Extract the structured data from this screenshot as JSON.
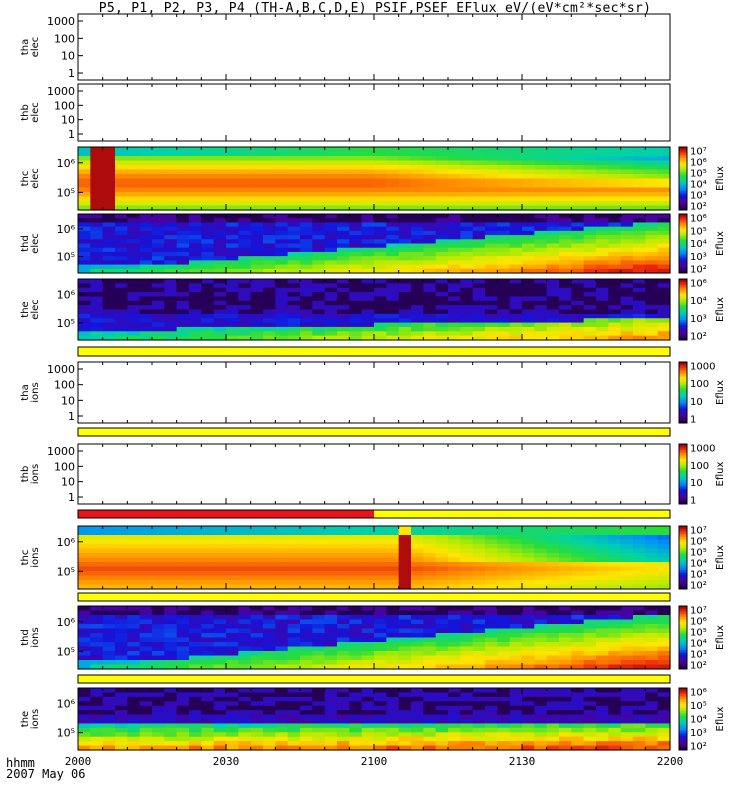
{
  "title": "P5, P1, P2, P3, P4 (TH-A,B,C,D,E) PSIF,PSEF EFlux eV/(eV*cm²*sec*sr)",
  "footer": {
    "hhmm": "hhmm",
    "date": "2007 May 06"
  },
  "time_axis": {
    "ticks": [
      "2000",
      "2030",
      "2100",
      "2130",
      "2200"
    ],
    "range_hhmm": [
      "2000",
      "2200"
    ]
  },
  "colorbar_title": "Eflux",
  "chart_data": [
    {
      "type": "heatmap",
      "panel": "tha elec",
      "ylabel": [
        "tha",
        "elec"
      ],
      "yscale": "log",
      "ylim": [
        0.5,
        1500
      ],
      "yticks": [
        "1000",
        "100",
        "10",
        "1"
      ],
      "data_shown": false
    },
    {
      "type": "heatmap",
      "panel": "thb elec",
      "ylabel": [
        "thb",
        "elec"
      ],
      "yscale": "log",
      "ylim": [
        0.5,
        1500
      ],
      "yticks": [
        "1000",
        "100",
        "10",
        "1"
      ],
      "data_shown": false
    },
    {
      "type": "heatmap",
      "panel": "thc elec",
      "ylabel": [
        "thc",
        "elec"
      ],
      "yscale": "log",
      "yticks": [
        "10⁶",
        "10⁵"
      ],
      "colorbar": {
        "label": "Eflux",
        "ticks": [
          "10⁷",
          "10⁶",
          "10⁵",
          "10⁴",
          "10³",
          "10²"
        ]
      },
      "pattern": "hot_flux_enhancement_near_2003"
    },
    {
      "type": "heatmap",
      "panel": "thd elec",
      "ylabel": [
        "thd",
        "elec"
      ],
      "yscale": "log",
      "yticks": [
        "10⁶",
        "10⁵"
      ],
      "colorbar": {
        "label": "Eflux",
        "ticks": [
          "10⁶",
          "10⁵",
          "10⁴",
          "10³",
          "10²"
        ]
      },
      "pattern": "rising_flux_toward_2200"
    },
    {
      "type": "heatmap",
      "panel": "the elec",
      "ylabel": [
        "the",
        "elec"
      ],
      "yscale": "log",
      "yticks": [
        "10⁶",
        "10⁵"
      ],
      "colorbar": {
        "label": "Eflux",
        "ticks": [
          "10⁶",
          "10⁴",
          "10³",
          "10²"
        ]
      },
      "pattern": "low_energy_flux_rising_late"
    },
    {
      "type": "heatmap",
      "panel": "tha ions",
      "ylabel": [
        "tha",
        "ions"
      ],
      "yscale": "log",
      "ylim": [
        0.5,
        1500
      ],
      "yticks": [
        "1000",
        "100",
        "10",
        "1"
      ],
      "colorbar": {
        "label": "Eflux",
        "ticks": [
          "1000",
          "100",
          "10",
          "1"
        ]
      },
      "data_shown": false
    },
    {
      "type": "heatmap",
      "panel": "thb ions",
      "ylabel": [
        "thb",
        "ions"
      ],
      "yscale": "log",
      "ylim": [
        0.5,
        1500
      ],
      "yticks": [
        "1000",
        "100",
        "10",
        "1"
      ],
      "colorbar": {
        "label": "Eflux",
        "ticks": [
          "1000",
          "100",
          "10",
          "1"
        ]
      },
      "data_shown": false
    },
    {
      "type": "heatmap",
      "panel": "thc ions",
      "ylabel": [
        "thc",
        "ions"
      ],
      "yscale": "log",
      "yticks": [
        "10⁶",
        "10⁵"
      ],
      "colorbar": {
        "label": "Eflux",
        "ticks": [
          "10⁷",
          "10⁶",
          "10⁵",
          "10⁴",
          "10³",
          "10²"
        ]
      },
      "pattern": "hot_plasma_with_spike_near_2110"
    },
    {
      "type": "heatmap",
      "panel": "thd ions",
      "ylabel": [
        "thd",
        "ions"
      ],
      "yscale": "log",
      "yticks": [
        "10⁶",
        "10⁵"
      ],
      "colorbar": {
        "label": "Eflux",
        "ticks": [
          "10⁷",
          "10⁶",
          "10⁵",
          "10⁴",
          "10³",
          "10²"
        ]
      },
      "pattern": "rising_flux_toward_2200"
    },
    {
      "type": "heatmap",
      "panel": "the ions",
      "ylabel": [
        "the",
        "ions"
      ],
      "yscale": "log",
      "yticks": [
        "10⁶",
        "10⁵"
      ],
      "colorbar": {
        "label": "Eflux",
        "ticks": [
          "10⁶",
          "10⁵",
          "10⁴",
          "10³",
          "10²"
        ]
      },
      "pattern": "low_energy_flux_band"
    }
  ],
  "mode_bars": [
    {
      "after_panel": "the elec",
      "segments": [
        {
          "from": "2000",
          "to": "2200",
          "color": "#ffff00"
        }
      ]
    },
    {
      "after_panel": "tha ions",
      "segments": [
        {
          "from": "2000",
          "to": "2200",
          "color": "#ffff00"
        }
      ]
    },
    {
      "after_panel": "thb ions",
      "segments": [
        {
          "from": "2000",
          "to": "2100",
          "color": "#e8141c"
        },
        {
          "from": "2100",
          "to": "2200",
          "color": "#ffff00"
        }
      ]
    },
    {
      "after_panel": "thc ions",
      "segments": [
        {
          "from": "2000",
          "to": "2200",
          "color": "#ffff00"
        }
      ]
    },
    {
      "after_panel": "thd ions",
      "segments": [
        {
          "from": "2000",
          "to": "2200",
          "color": "#ffff00"
        }
      ]
    }
  ]
}
